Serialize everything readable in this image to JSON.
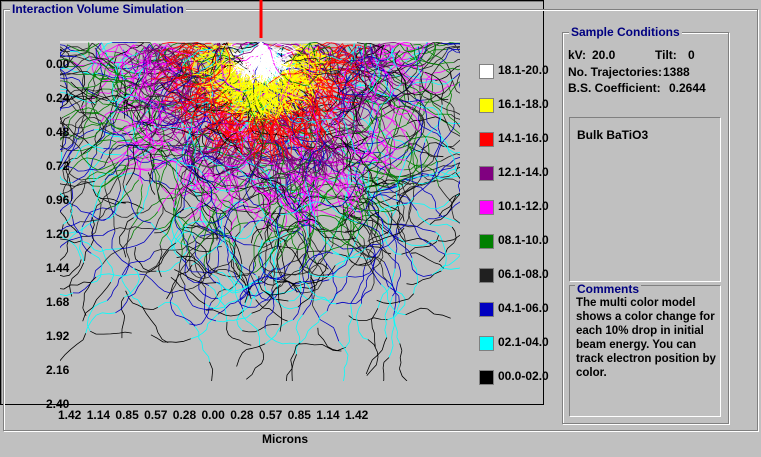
{
  "window": {
    "title": "Interaction Volume Simulation"
  },
  "plot": {
    "beam_color": "#ff0000",
    "y_ticks": [
      "0.00",
      "0.24",
      "0.48",
      "0.72",
      "0.96",
      "1.20",
      "1.44",
      "1.68",
      "1.92",
      "2.16",
      "2.40"
    ],
    "x_ticks": [
      "1.42",
      "1.14",
      "0.85",
      "0.57",
      "0.28",
      "0.00",
      "0.28",
      "0.57",
      "0.85",
      "1.14",
      "1.42"
    ],
    "xlabel": "Microns"
  },
  "legend": [
    {
      "label": "18.1-20.0",
      "color": "#ffffff"
    },
    {
      "label": "16.1-18.0",
      "color": "#ffff00"
    },
    {
      "label": "14.1-16.0",
      "color": "#ff0000"
    },
    {
      "label": "12.1-14.0",
      "color": "#800080"
    },
    {
      "label": "10.1-12.0",
      "color": "#ff00ff"
    },
    {
      "label": "08.1-10.0",
      "color": "#008000"
    },
    {
      "label": "06.1-08.0",
      "color": "#202020"
    },
    {
      "label": "04.1-06.0",
      "color": "#0000c0"
    },
    {
      "label": "02.1-04.0",
      "color": "#00ffff"
    },
    {
      "label": "00.0-02.0",
      "color": "#000000"
    }
  ],
  "sample_conditions": {
    "title": "Sample Conditions",
    "kv_label": "kV:",
    "kv_value": "20.0",
    "tilt_label": "Tilt:",
    "tilt_value": "0",
    "trajectories_label": "No. Trajectories:",
    "trajectories_value": "1388",
    "bs_label": "B.S. Coefficient:",
    "bs_value": "0.2644"
  },
  "sample": {
    "name": "Bulk BaTiO3"
  },
  "comments": {
    "title": "Comments",
    "text": "The multi color model shows a color change for each 10% drop in initial beam energy. You can track electron position by color."
  }
}
